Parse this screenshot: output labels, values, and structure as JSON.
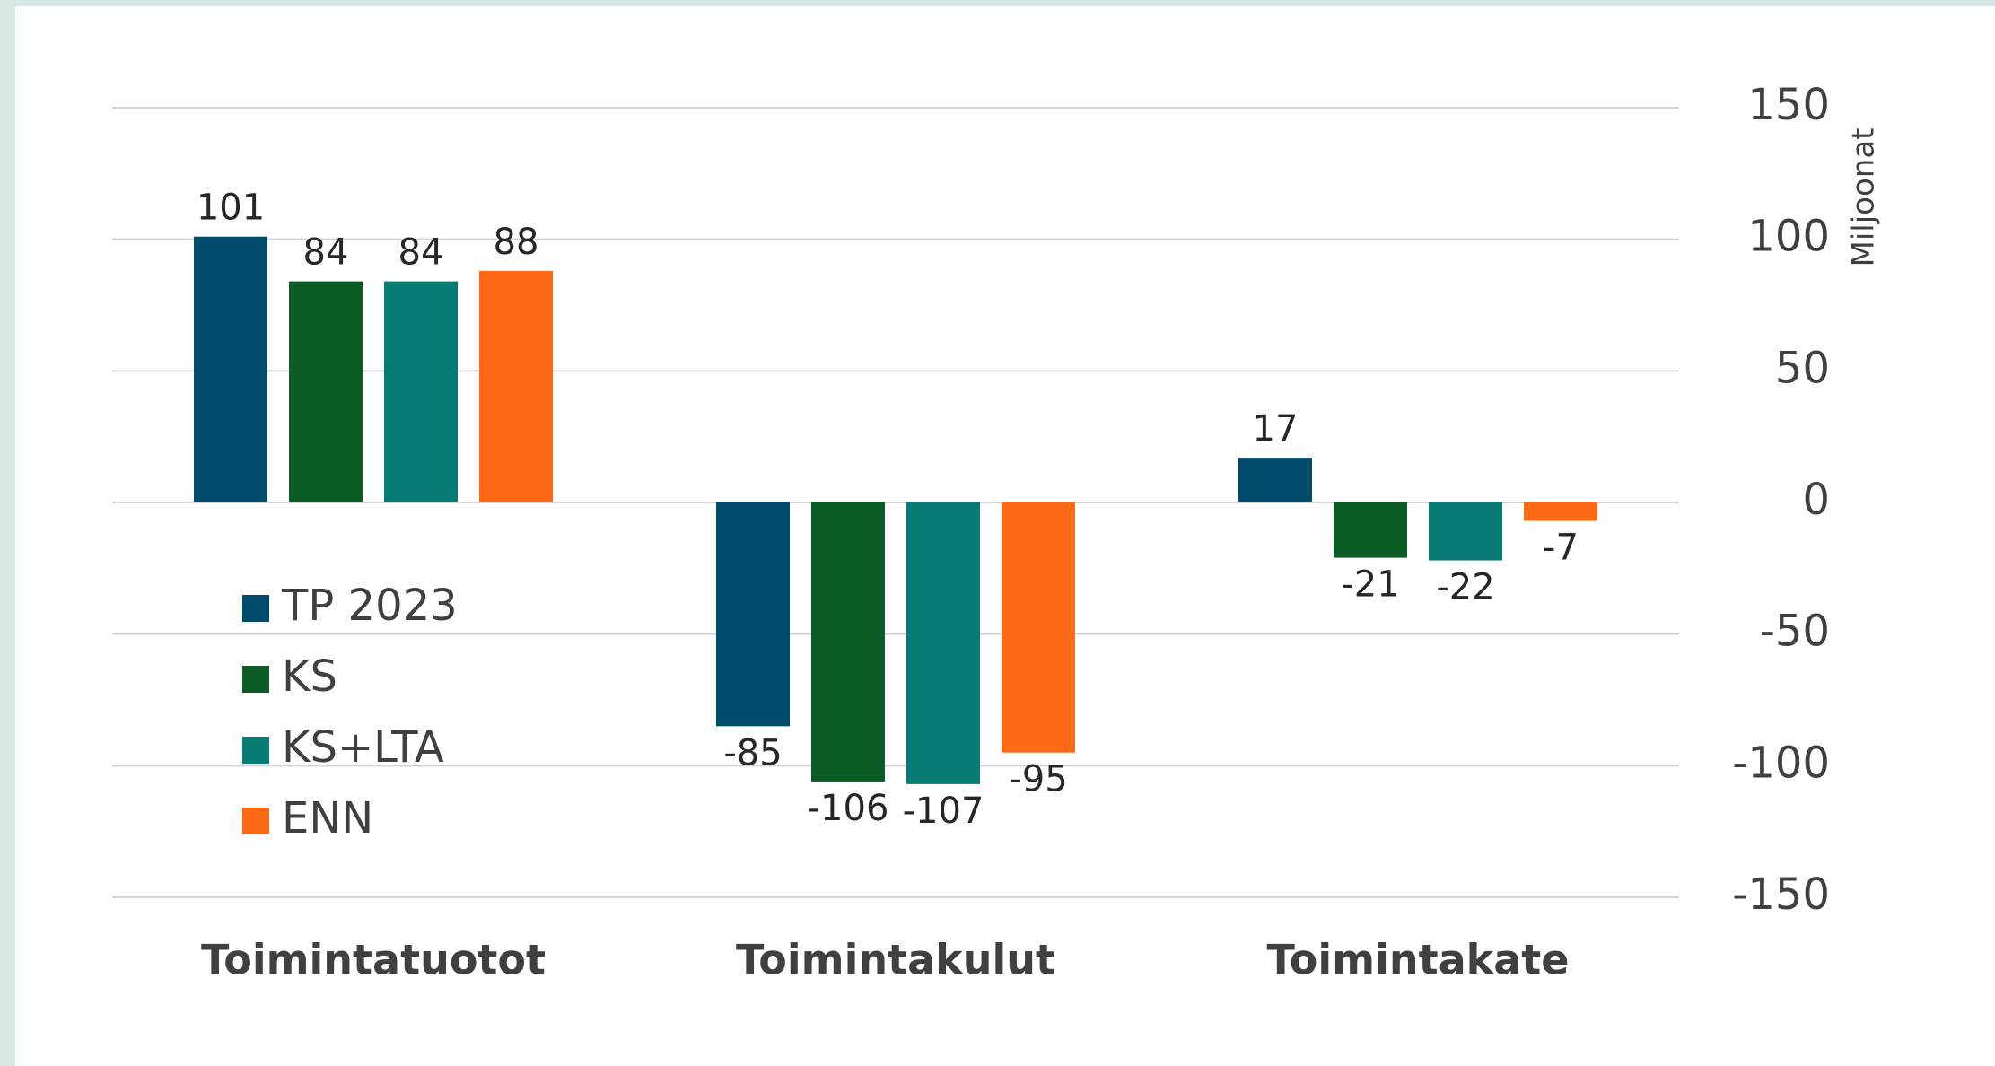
{
  "chart_data": {
    "type": "bar",
    "categories": [
      "Toimintatuotot",
      "Toimintakulut",
      "Toimintakate"
    ],
    "series": [
      {
        "name": "TP 2023",
        "color": "#004b6b",
        "values": [
          101,
          -85,
          17
        ]
      },
      {
        "name": "KS",
        "color": "#0b5b25",
        "values": [
          84,
          -106,
          -21
        ]
      },
      {
        "name": "KS+LTA",
        "color": "#087b74",
        "values": [
          84,
          -107,
          -22
        ]
      },
      {
        "name": "ENN",
        "color": "#fd6a15",
        "values": [
          88,
          -95,
          -7
        ]
      }
    ],
    "y_axis_label": "Miljoonat",
    "ylim": [
      -150,
      150
    ],
    "yticks": [
      -150,
      -100,
      -50,
      0,
      50,
      100,
      150
    ],
    "grid": true,
    "legend": "left"
  }
}
